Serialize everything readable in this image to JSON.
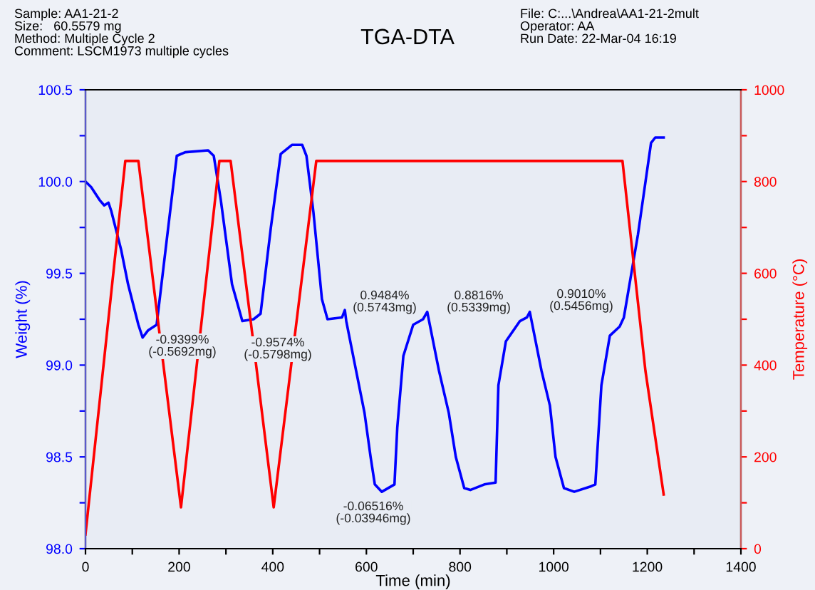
{
  "chart_data": {
    "type": "line",
    "title": "TGA-DTA",
    "xlabel": "Time (min)",
    "ylabel": "Weight (%)",
    "y2label": "Temperature (°C)",
    "xlim": [
      0,
      1400
    ],
    "ylim": [
      98.0,
      100.5
    ],
    "y2lim": [
      0,
      1000
    ],
    "xticks": [
      0,
      {
        "value": 100,
        "label": null
      },
      200,
      {
        "value": 300,
        "label": null
      },
      400,
      {
        "value": 500,
        "label": null
      },
      600,
      {
        "value": 700,
        "label": null
      },
      800,
      {
        "value": 900,
        "label": null
      },
      1000,
      {
        "value": 1100,
        "label": null
      },
      1200,
      {
        "value": 1300,
        "label": null
      },
      1400
    ],
    "yticks": [
      {
        "value": 98.0,
        "label": "98.0"
      },
      {
        "value": 98.25,
        "label": null
      },
      {
        "value": 98.5,
        "label": "98.5"
      },
      {
        "value": 98.75,
        "label": null
      },
      {
        "value": 99.0,
        "label": "99.0"
      },
      {
        "value": 99.25,
        "label": null
      },
      {
        "value": 99.5,
        "label": "99.5"
      },
      {
        "value": 99.75,
        "label": null
      },
      {
        "value": 100.0,
        "label": "100.0"
      },
      {
        "value": 100.25,
        "label": null
      },
      {
        "value": 100.5,
        "label": "100.5"
      }
    ],
    "y2ticks": [
      0,
      {
        "value": 100,
        "label": null
      },
      200,
      {
        "value": 300,
        "label": null
      },
      400,
      {
        "value": 500,
        "label": null
      },
      600,
      {
        "value": 700,
        "label": null
      },
      800,
      {
        "value": 900,
        "label": null
      },
      1000
    ],
    "grid": false,
    "legend": false,
    "marker": "none",
    "line_style": "solid",
    "series": [
      {
        "color": "#0000ff",
        "x": [
          0,
          12,
          30,
          40,
          49,
          55,
          76,
          91,
          113,
          122,
          134,
          152,
          173,
          195,
          213,
          262,
          274,
          289,
          313,
          335,
          359,
          374,
          396,
          417,
          441,
          463,
          472,
          487,
          505,
          517,
          548,
          554,
          557,
          578,
          596,
          609,
          618,
          633,
          660,
          666,
          679,
          700,
          721,
          730,
          755,
          776,
          791,
          809,
          822,
          852,
          876,
          882,
          898,
          928,
          943,
          949,
          974,
          992,
          1004,
          1022,
          1044,
          1080,
          1089,
          1102,
          1120,
          1141,
          1150,
          1180,
          1208,
          1217,
          1235
        ],
        "values": [
          100.0,
          99.97,
          99.9,
          99.87,
          99.885,
          99.84,
          99.63,
          99.44,
          99.22,
          99.15,
          99.19,
          99.22,
          99.67,
          100.14,
          100.16,
          100.17,
          100.14,
          99.9,
          99.44,
          99.24,
          99.25,
          99.28,
          99.75,
          100.15,
          100.2,
          100.2,
          100.14,
          99.83,
          99.36,
          99.25,
          99.26,
          99.3,
          99.24,
          98.97,
          98.74,
          98.5,
          98.35,
          98.31,
          98.35,
          98.66,
          99.05,
          99.22,
          99.25,
          99.29,
          98.97,
          98.74,
          98.5,
          98.33,
          98.32,
          98.35,
          98.36,
          98.89,
          99.13,
          99.24,
          99.26,
          99.29,
          98.97,
          98.78,
          98.5,
          98.33,
          98.31,
          98.34,
          98.35,
          98.89,
          99.16,
          99.21,
          99.26,
          99.71,
          100.21,
          100.24,
          100.24
        ]
      },
      {
        "color": "#ff0000",
        "axis": "y2",
        "x": [
          0,
          85,
          113,
          158,
          204,
          286,
          310,
          356,
          402,
          493,
          1147,
          1196,
          1235
        ],
        "values": [
          31,
          845,
          845,
          470,
          90,
          845,
          845,
          470,
          90,
          845,
          845,
          388,
          118
        ]
      }
    ],
    "annotations": [
      "Sample: AA1-21-2\nSize:   60.5579 mg\nMethod: Multiple Cycle 2\nComment: LSCM1973 multiple cycles",
      "File: C:...\\Andrea\\AA1-21-2mult\nOperator: AA\nRun Date: 22-Mar-04 16:19",
      "-0.9399%\n(-0.5692mg)",
      "-0.9574%\n(-0.5798mg)",
      "0.9484%\n(0.5743mg)",
      "-0.06516%\n(-0.03946mg)",
      "0.8816%\n(0.5339mg)",
      "0.9010%\n(0.5456mg)"
    ]
  }
}
